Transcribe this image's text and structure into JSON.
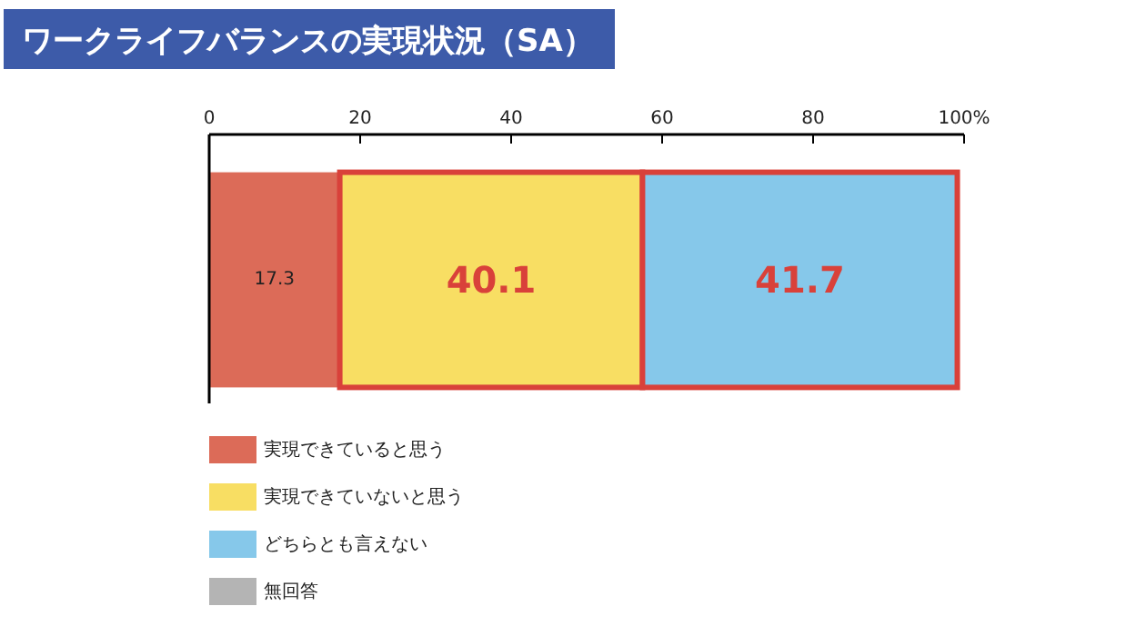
{
  "chart_data": {
    "type": "bar",
    "orientation": "horizontal",
    "stacked": true,
    "title": "ワークライフバランスの実現状況（SA）",
    "categories": [
      null
    ],
    "series": [
      {
        "name": "実現できていると思う",
        "color": "#dc6b58",
        "values": [
          17.3
        ]
      },
      {
        "name": "実現できていないと思う",
        "color": "#f8de63",
        "values": [
          40.1
        ]
      },
      {
        "name": "どちらとも言えない",
        "color": "#86c8ea",
        "values": [
          41.7
        ]
      },
      {
        "name": "無回答",
        "color": "#b4b4b4",
        "values": [
          null
        ]
      }
    ],
    "xlim": [
      0,
      100
    ],
    "xticks": [
      0,
      20,
      40,
      60,
      80,
      {
        "value": 100,
        "label": "100%"
      }
    ],
    "data_labels": true,
    "legend": "bottom left",
    "grid": false
  }
}
